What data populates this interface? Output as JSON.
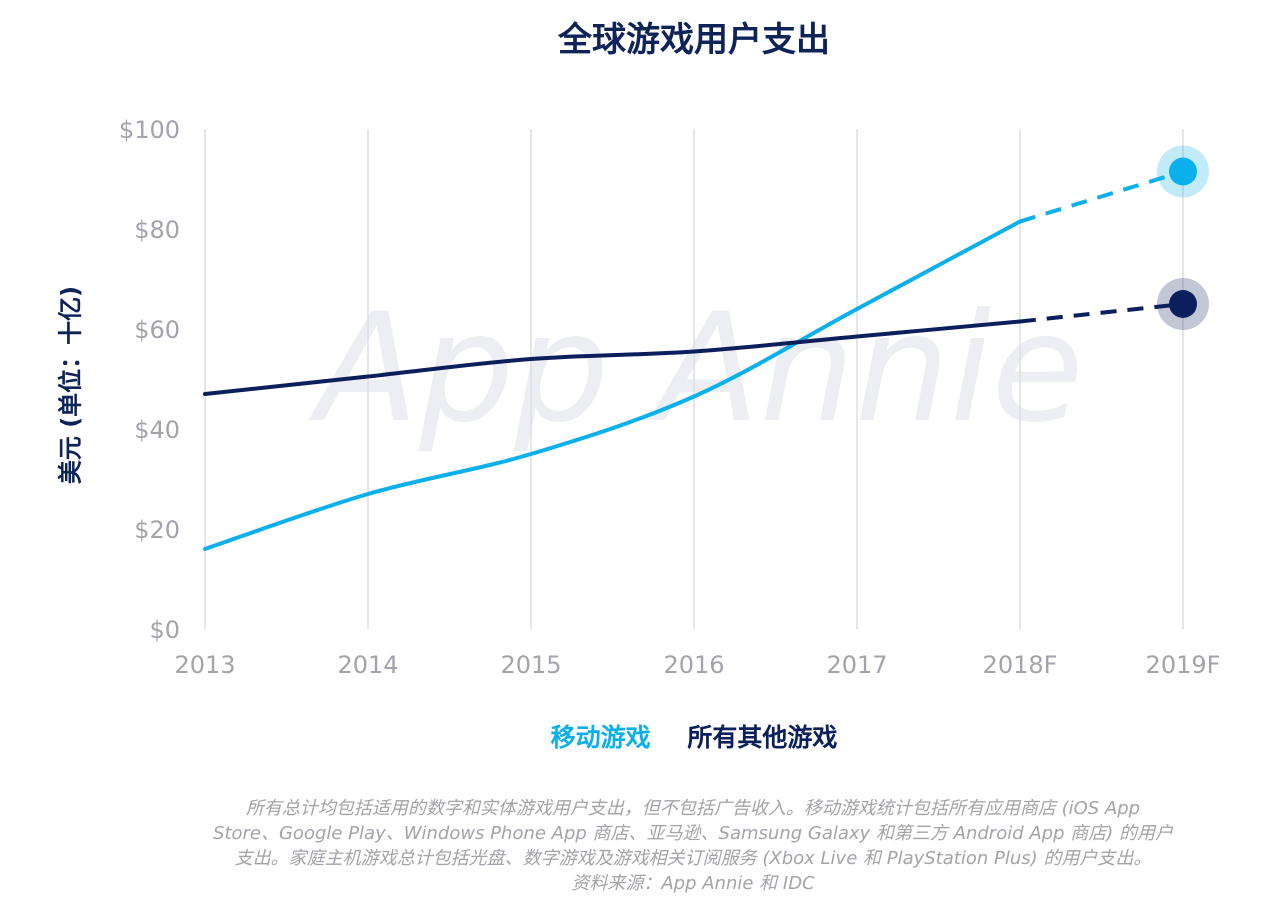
{
  "colors": {
    "mobile": "#0ab0ec",
    "other": "#0a1f5c",
    "grid": "#dcdde2",
    "tick": "#a3a3ab",
    "watermark": "#eceef3"
  },
  "title": "全球游戏用户支出",
  "watermark": "App Annie",
  "legend": {
    "mobile_label": "移动游戏",
    "other_label": "所有其他游戏"
  },
  "note_lines": [
    "所有总计均包括适用的数字和实体游戏用户支出，但不包括广告收入。移动游戏统计包括所有应用商店 (iOS App",
    "Store、Google Play、Windows Phone App 商店、亚马逊、Samsung Galaxy 和第三方 Android App 商店) 的用户",
    "支出。家庭主机游戏总计包括光盘、数字游戏及游戏相关订阅服务 (Xbox Live 和 PlayStation Plus) 的用户支出。",
    "资料来源：App Annie 和 IDC"
  ],
  "chart_data": {
    "type": "line",
    "title": "全球游戏用户支出",
    "xlabel": "",
    "ylabel": "美元 (单位：十亿)",
    "categories": [
      "2013",
      "2014",
      "2015",
      "2016",
      "2017",
      "2018F",
      "2019F"
    ],
    "forecast_from_index": 5,
    "ylim": [
      0,
      100
    ],
    "yticks": [
      0,
      20,
      40,
      60,
      80,
      100
    ],
    "ytick_labels": [
      "$0",
      "$20",
      "$40",
      "$60",
      "$80",
      "$100"
    ],
    "grid": "vertical",
    "legend_position": "bottom-center",
    "series": [
      {
        "name": "移动游戏",
        "values": [
          16,
          27,
          35,
          46.5,
          64,
          81.5,
          91.5
        ]
      },
      {
        "name": "所有其他游戏",
        "values": [
          47,
          50.5,
          54,
          55.5,
          58.5,
          61.5,
          65
        ]
      }
    ]
  }
}
